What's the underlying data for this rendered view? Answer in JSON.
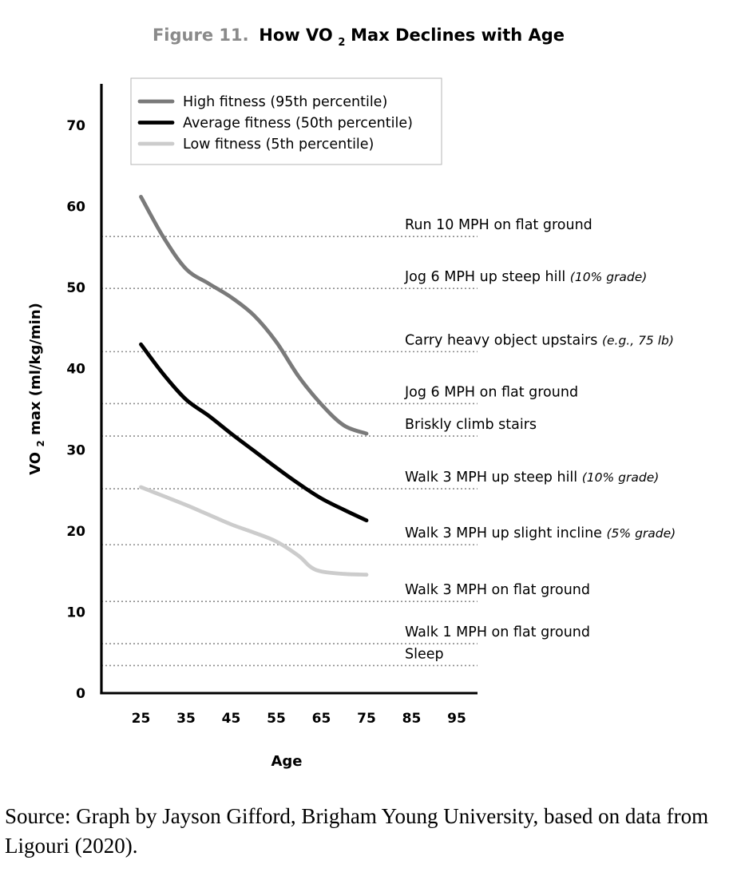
{
  "chart_data": {
    "type": "line",
    "title_prefix": "Figure 11.",
    "title_pre": "How VO",
    "title_sub": "2",
    "title_post": " Max Declines with Age",
    "xlabel": "Age",
    "ylabel_pre": "VO",
    "ylabel_sub": "2",
    "ylabel_post": " max (ml/kg/min)",
    "xlim": [
      17,
      100
    ],
    "ylim": [
      0,
      75
    ],
    "x_ticks": [
      25,
      35,
      45,
      55,
      65,
      75,
      85,
      95
    ],
    "y_ticks": [
      0,
      10,
      20,
      30,
      40,
      50,
      60,
      70
    ],
    "legend_position": "top-left",
    "grid": false,
    "series": [
      {
        "name": "High fitness (95th percentile)",
        "color": "#7a7a7a",
        "points": [
          [
            25,
            61.2
          ],
          [
            30,
            56.2
          ],
          [
            35,
            52.3
          ],
          [
            40,
            50.5
          ],
          [
            45,
            48.8
          ],
          [
            50,
            46.6
          ],
          [
            55,
            43.3
          ],
          [
            60,
            39.0
          ],
          [
            65,
            35.6
          ],
          [
            70,
            33.0
          ],
          [
            75,
            32.0
          ]
        ]
      },
      {
        "name": "Average fitness (50th percentile)",
        "color": "#000000",
        "points": [
          [
            25,
            43.0
          ],
          [
            30,
            39.3
          ],
          [
            35,
            36.2
          ],
          [
            40,
            34.2
          ],
          [
            45,
            32.0
          ],
          [
            50,
            29.9
          ],
          [
            55,
            27.8
          ],
          [
            60,
            25.8
          ],
          [
            65,
            24.0
          ],
          [
            70,
            22.6
          ],
          [
            75,
            21.3
          ]
        ]
      },
      {
        "name": "Low fitness (5th percentile)",
        "color": "#cccccc",
        "points": [
          [
            25,
            25.4
          ],
          [
            30,
            24.3
          ],
          [
            35,
            23.2
          ],
          [
            40,
            22.0
          ],
          [
            45,
            20.8
          ],
          [
            50,
            19.8
          ],
          [
            55,
            18.7
          ],
          [
            60,
            16.9
          ],
          [
            62.5,
            15.6
          ],
          [
            65,
            15.0
          ],
          [
            70,
            14.7
          ],
          [
            75,
            14.6
          ]
        ]
      }
    ],
    "reference_lines": [
      {
        "y": 56.3,
        "label": "Run 10 MPH on flat ground",
        "note": ""
      },
      {
        "y": 49.9,
        "label": "Jog 6 MPH up steep hill ",
        "note": "(10% grade)"
      },
      {
        "y": 42.1,
        "label": "Carry heavy object upstairs ",
        "note": "(e.g., 75 lb)"
      },
      {
        "y": 35.7,
        "label": "Jog 6 MPH on flat ground",
        "note": ""
      },
      {
        "y": 31.7,
        "label": "Briskly climb stairs",
        "note": ""
      },
      {
        "y": 25.2,
        "label": "Walk 3 MPH up steep hill ",
        "note": "(10% grade)"
      },
      {
        "y": 18.3,
        "label": "Walk 3 MPH up slight incline ",
        "note": "(5% grade)"
      },
      {
        "y": 11.3,
        "label": "Walk 3 MPH on flat ground",
        "note": ""
      },
      {
        "y": 6.1,
        "label": "Walk 1 MPH on flat ground",
        "note": ""
      },
      {
        "y": 3.4,
        "label": "Sleep",
        "note": ""
      }
    ]
  },
  "caption": "Source: Graph by Jayson Gifford, Brigham Young University, based on data from Ligouri (2020)."
}
